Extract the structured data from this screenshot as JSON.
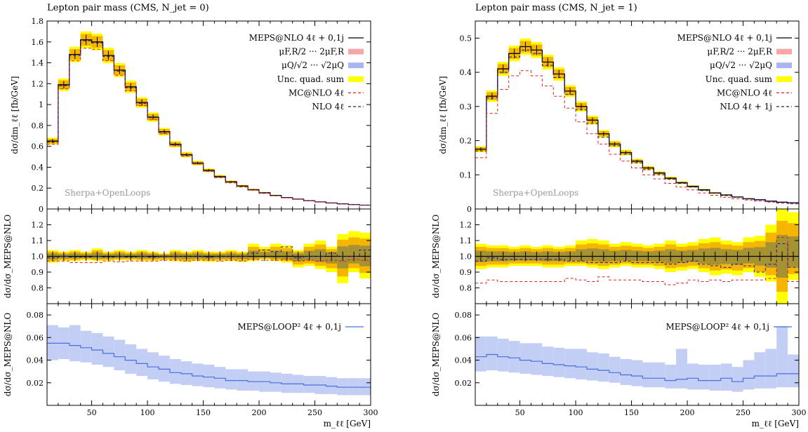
{
  "chart_data": [
    {
      "type": "line",
      "title": "Lepton pair mass (CMS, N_jet = 0)",
      "watermark": "Sherpa+OpenLoops",
      "xlabel": "m_ℓℓ [GeV]",
      "xlim": [
        10,
        300
      ],
      "x_ticks": [
        "50",
        "100",
        "150",
        "200",
        "250",
        "300"
      ],
      "bin_edges": [
        10,
        20,
        30,
        40,
        50,
        60,
        70,
        80,
        90,
        100,
        110,
        120,
        130,
        140,
        150,
        160,
        170,
        180,
        190,
        200,
        210,
        220,
        230,
        240,
        250,
        260,
        270,
        280,
        290,
        300
      ],
      "main": {
        "ylabel": "dσ/dm_ℓℓ [fb/GeV]",
        "ylim": [
          0,
          1.8
        ],
        "y_ticks": [
          "0",
          "0.2",
          "0.4",
          "0.6",
          "0.8",
          "1",
          "1.2",
          "1.4",
          "1.6",
          "1.8"
        ],
        "legend": [
          {
            "label": "MEPS@NLO 4ℓ + 0,1j",
            "color": "#000000",
            "style": "solid"
          },
          {
            "label": "μF,R/2 ··· 2μF,R",
            "color": "#f6a8a8",
            "style": "band"
          },
          {
            "label": "μQ/√2 ··· √2μQ",
            "color": "#a9b5f0",
            "style": "band"
          },
          {
            "label": "Unc. quad. sum",
            "color": "#ffff00",
            "style": "band"
          },
          {
            "label": "MC@NLO 4ℓ",
            "color": "#e02020",
            "style": "dashed"
          },
          {
            "label": "NLO 4ℓ",
            "color": "#1b1b9e",
            "style": "dashed"
          }
        ],
        "series": [
          {
            "name": "MEPS@NLO 4ℓ + 0,1j",
            "values": [
              0.65,
              1.19,
              1.48,
              1.62,
              1.6,
              1.47,
              1.33,
              1.17,
              1.02,
              0.88,
              0.74,
              0.62,
              0.52,
              0.44,
              0.37,
              0.31,
              0.26,
              0.22,
              0.185,
              0.155,
              0.13,
              0.11,
              0.095,
              0.08,
              0.068,
              0.058,
              0.05,
              0.043,
              0.037
            ]
          },
          {
            "name": "MC@NLO 4ℓ",
            "values": [
              0.62,
              1.15,
              1.42,
              1.54,
              1.53,
              1.42,
              1.28,
              1.13,
              0.99,
              0.855,
              0.72,
              0.605,
              0.505,
              0.43,
              0.36,
              0.3,
              0.25,
              0.21,
              0.18,
              0.15,
              0.126,
              0.107,
              0.092,
              0.078,
              0.066,
              0.056,
              0.048,
              0.042,
              0.036
            ]
          },
          {
            "name": "NLO 4ℓ",
            "values": [
              0.64,
              1.18,
              1.47,
              1.61,
              1.59,
              1.46,
              1.32,
              1.16,
              1.01,
              0.875,
              0.735,
              0.615,
              0.515,
              0.437,
              0.367,
              0.307,
              0.258,
              0.218,
              0.183,
              0.154,
              0.129,
              0.11,
              0.094,
              0.079,
              0.067,
              0.057,
              0.049,
              0.043,
              0.037
            ]
          }
        ]
      },
      "ratio": {
        "ylabel": "dσ/dσ_MEPS@NLO",
        "ylim": [
          0.7,
          1.3
        ],
        "y_ticks": [
          "0.8",
          "0.9",
          "1.0",
          "1.1",
          "1.2"
        ],
        "mcnlo": [
          0.97,
          0.97,
          0.96,
          0.96,
          0.96,
          0.97,
          0.965,
          0.97,
          0.97,
          0.97,
          0.975,
          0.975,
          0.97,
          0.975,
          0.975,
          0.97,
          0.975,
          0.97,
          0.98,
          0.975,
          0.975,
          0.98,
          0.97,
          0.975,
          0.97,
          0.975,
          0.97,
          0.98,
          0.975
        ],
        "nlo": [
          0.99,
          1.0,
          0.995,
          0.995,
          1.0,
          0.995,
          1.0,
          0.995,
          1.0,
          0.995,
          1.0,
          1.0,
          1.0,
          1.0,
          0.995,
          1.0,
          1.0,
          1.0,
          1.02,
          1.04,
          1.03,
          1.06,
          0.99,
          1.0,
          1.0,
          1.02,
          1.0,
          1.0,
          1.04
        ],
        "unc_lo": [
          0.96,
          0.97,
          0.97,
          0.975,
          0.97,
          0.97,
          0.975,
          0.975,
          0.97,
          0.97,
          0.975,
          0.97,
          0.965,
          0.97,
          0.965,
          0.97,
          0.97,
          0.965,
          0.97,
          0.98,
          0.97,
          0.96,
          0.93,
          0.94,
          0.92,
          0.9,
          0.83,
          0.9,
          0.86
        ],
        "unc_hi": [
          1.04,
          1.03,
          1.04,
          1.03,
          1.05,
          1.03,
          1.04,
          1.03,
          1.04,
          1.03,
          1.02,
          1.04,
          1.03,
          1.04,
          1.03,
          1.03,
          1.04,
          1.03,
          1.08,
          1.06,
          1.08,
          1.07,
          1.04,
          1.08,
          1.1,
          1.06,
          1.14,
          1.16,
          1.15
        ]
      },
      "loop": {
        "ylabel": "dσ/dσ_MEPS@NLO",
        "ylim": [
          0,
          0.09
        ],
        "y_ticks": [
          "0.02",
          "0.04",
          "0.06",
          "0.08"
        ],
        "legend": {
          "label": "MEPS@LOOP² 4ℓ + 0,1j",
          "color": "#4a6ee0"
        },
        "values": [
          0.055,
          0.055,
          0.053,
          0.051,
          0.049,
          0.046,
          0.043,
          0.04,
          0.037,
          0.034,
          0.032,
          0.029,
          0.028,
          0.026,
          0.025,
          0.024,
          0.022,
          0.022,
          0.021,
          0.021,
          0.02,
          0.019,
          0.019,
          0.018,
          0.018,
          0.017,
          0.016,
          0.016,
          0.016
        ],
        "lo": [
          0.04,
          0.041,
          0.039,
          0.038,
          0.036,
          0.034,
          0.031,
          0.028,
          0.026,
          0.023,
          0.021,
          0.019,
          0.018,
          0.017,
          0.016,
          0.015,
          0.014,
          0.013,
          0.013,
          0.012,
          0.012,
          0.011,
          0.011,
          0.011,
          0.01,
          0.01,
          0.009,
          0.009,
          0.009
        ],
        "hi": [
          0.071,
          0.069,
          0.071,
          0.066,
          0.064,
          0.061,
          0.058,
          0.054,
          0.05,
          0.047,
          0.044,
          0.041,
          0.039,
          0.037,
          0.036,
          0.034,
          0.032,
          0.032,
          0.03,
          0.03,
          0.029,
          0.028,
          0.027,
          0.026,
          0.026,
          0.025,
          0.024,
          0.024,
          0.024
        ]
      }
    },
    {
      "type": "line",
      "title": "Lepton pair mass (CMS, N_jet = 1)",
      "watermark": "Sherpa+OpenLoops",
      "xlabel": "m_ℓℓ [GeV]",
      "xlim": [
        10,
        300
      ],
      "x_ticks": [
        "50",
        "100",
        "150",
        "200",
        "250",
        "300"
      ],
      "bin_edges": [
        10,
        20,
        30,
        40,
        50,
        60,
        70,
        80,
        90,
        100,
        110,
        120,
        130,
        140,
        150,
        160,
        170,
        180,
        190,
        200,
        210,
        220,
        230,
        240,
        250,
        260,
        270,
        280,
        290,
        300
      ],
      "main": {
        "ylabel": "dσ/dm_ℓℓ [fb/GeV]",
        "ylim": [
          0,
          0.55
        ],
        "y_ticks": [
          "0",
          "0.1",
          "0.2",
          "0.3",
          "0.4",
          "0.5"
        ],
        "legend": [
          {
            "label": "MEPS@NLO 4ℓ + 0,1j",
            "color": "#000000",
            "style": "solid"
          },
          {
            "label": "μF,R/2 ··· 2μF,R",
            "color": "#f6a8a8",
            "style": "band"
          },
          {
            "label": "μQ/√2 ··· √2μQ",
            "color": "#a9b5f0",
            "style": "band"
          },
          {
            "label": "Unc. quad. sum",
            "color": "#ffff00",
            "style": "band"
          },
          {
            "label": "MC@NLO 4ℓ",
            "color": "#e02020",
            "style": "dashed"
          },
          {
            "label": "NLO 4ℓ + 1j",
            "color": "#1b1b9e",
            "style": "dashed"
          }
        ],
        "series": [
          {
            "name": "MEPS@NLO 4ℓ + 0,1j",
            "values": [
              0.175,
              0.33,
              0.41,
              0.455,
              0.475,
              0.465,
              0.43,
              0.395,
              0.345,
              0.3,
              0.26,
              0.22,
              0.19,
              0.165,
              0.14,
              0.12,
              0.105,
              0.09,
              0.077,
              0.066,
              0.056,
              0.047,
              0.041,
              0.035,
              0.03,
              0.027,
              0.023,
              0.02,
              0.018
            ]
          },
          {
            "name": "MC@NLO 4ℓ",
            "values": [
              0.15,
              0.28,
              0.35,
              0.39,
              0.405,
              0.39,
              0.36,
              0.33,
              0.295,
              0.255,
              0.22,
              0.19,
              0.16,
              0.14,
              0.12,
              0.1,
              0.088,
              0.075,
              0.064,
              0.056,
              0.047,
              0.04,
              0.034,
              0.03,
              0.026,
              0.023,
              0.02,
              0.017,
              0.015
            ]
          },
          {
            "name": "NLO 4ℓ + 1j",
            "values": [
              0.17,
              0.325,
              0.4,
              0.445,
              0.465,
              0.455,
              0.42,
              0.385,
              0.335,
              0.29,
              0.25,
              0.21,
              0.185,
              0.16,
              0.135,
              0.115,
              0.1,
              0.087,
              0.075,
              0.064,
              0.054,
              0.046,
              0.039,
              0.034,
              0.029,
              0.026,
              0.022,
              0.019,
              0.017
            ]
          }
        ]
      },
      "ratio": {
        "ylabel": "dσ/dσ_MEPS@NLO",
        "ylim": [
          0.7,
          1.3
        ],
        "y_ticks": [
          "0.8",
          "0.9",
          "1.0",
          "1.1",
          "1.2"
        ],
        "mcnlo": [
          0.83,
          0.85,
          0.84,
          0.84,
          0.84,
          0.84,
          0.84,
          0.84,
          0.86,
          0.85,
          0.84,
          0.87,
          0.85,
          0.85,
          0.85,
          0.84,
          0.84,
          0.82,
          0.83,
          0.85,
          0.84,
          0.85,
          0.84,
          0.85,
          0.85,
          0.85,
          0.86,
          1.12,
          0.84
        ],
        "nlo": [
          0.97,
          0.99,
          0.98,
          0.98,
          0.98,
          0.98,
          0.98,
          0.98,
          0.97,
          0.97,
          0.96,
          0.96,
          0.96,
          0.97,
          0.96,
          0.96,
          0.96,
          0.95,
          0.96,
          0.97,
          0.95,
          0.94,
          0.93,
          0.95,
          0.94,
          0.9,
          0.95,
          1.08,
          0.93
        ],
        "unc_lo": [
          0.92,
          0.93,
          0.93,
          0.94,
          0.94,
          0.94,
          0.93,
          0.93,
          0.94,
          0.94,
          0.93,
          0.92,
          0.93,
          0.94,
          0.93,
          0.93,
          0.92,
          0.9,
          0.91,
          0.92,
          0.9,
          0.88,
          0.89,
          0.88,
          0.9,
          0.87,
          0.84,
          0.7,
          0.85
        ],
        "unc_hi": [
          1.08,
          1.07,
          1.07,
          1.06,
          1.07,
          1.06,
          1.07,
          1.06,
          1.07,
          1.1,
          1.11,
          1.1,
          1.08,
          1.09,
          1.08,
          1.07,
          1.08,
          1.1,
          1.08,
          1.09,
          1.11,
          1.12,
          1.1,
          1.09,
          1.12,
          1.13,
          1.2,
          1.3,
          1.28
        ]
      },
      "loop": {
        "ylabel": "dσ/dσ_MEPS@NLO",
        "ylim": [
          0,
          0.09
        ],
        "y_ticks": [
          "0.02",
          "0.04",
          "0.06",
          "0.08"
        ],
        "legend": {
          "label": "MEPS@LOOP² 4ℓ + 0,1j",
          "color": "#4a6ee0"
        },
        "values": [
          0.043,
          0.045,
          0.043,
          0.042,
          0.04,
          0.039,
          0.037,
          0.036,
          0.035,
          0.034,
          0.032,
          0.031,
          0.029,
          0.027,
          0.026,
          0.024,
          0.024,
          0.022,
          0.023,
          0.024,
          0.022,
          0.022,
          0.024,
          0.021,
          0.024,
          0.026,
          0.026,
          0.028,
          0.028
        ],
        "lo": [
          0.03,
          0.031,
          0.03,
          0.029,
          0.028,
          0.027,
          0.026,
          0.025,
          0.024,
          0.023,
          0.022,
          0.021,
          0.02,
          0.018,
          0.017,
          0.016,
          0.016,
          0.015,
          0.015,
          0.014,
          0.014,
          0.013,
          0.013,
          0.012,
          0.014,
          0.015,
          0.015,
          0.016,
          0.016
        ],
        "hi": [
          0.061,
          0.061,
          0.059,
          0.057,
          0.055,
          0.055,
          0.052,
          0.051,
          0.05,
          0.05,
          0.047,
          0.046,
          0.043,
          0.041,
          0.04,
          0.038,
          0.038,
          0.036,
          0.05,
          0.037,
          0.036,
          0.036,
          0.037,
          0.034,
          0.04,
          0.047,
          0.05,
          0.07,
          0.045
        ]
      }
    }
  ]
}
